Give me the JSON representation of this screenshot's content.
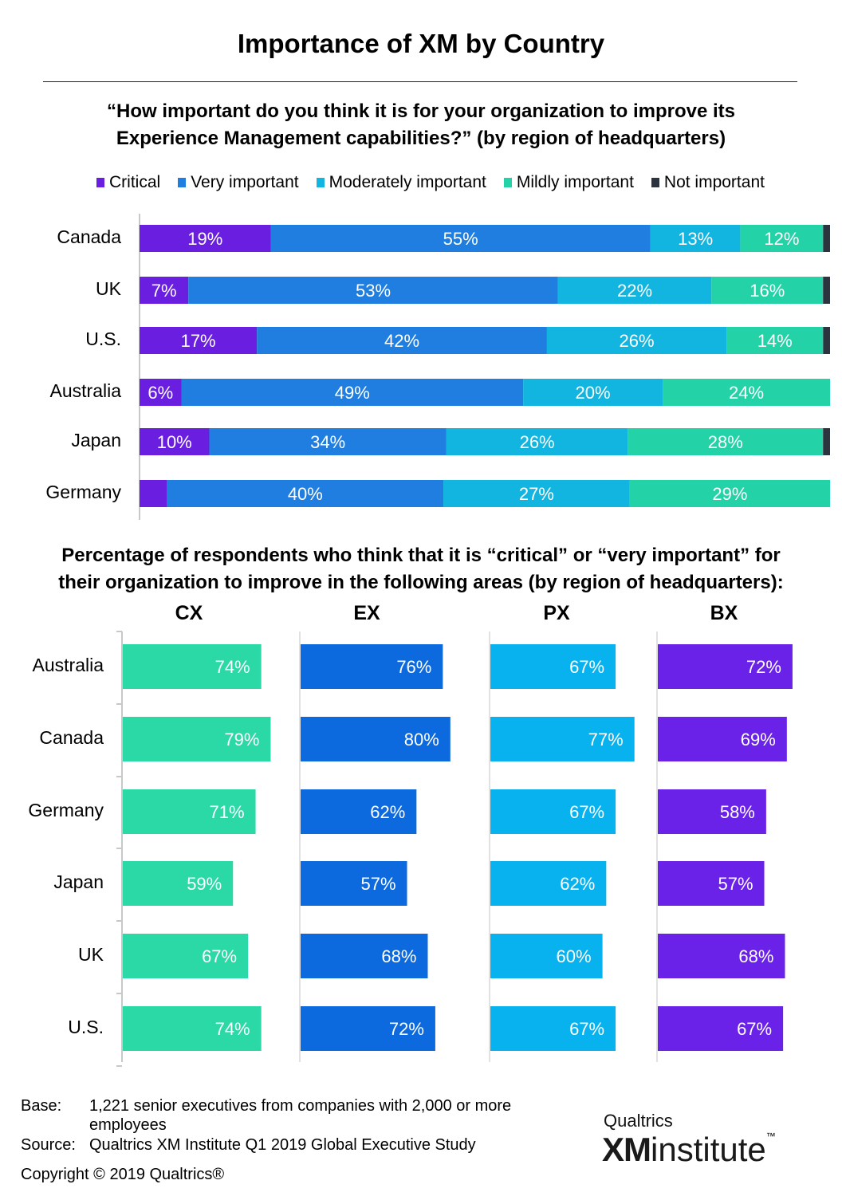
{
  "title": "Importance of XM by Country",
  "question1": {
    "line1": "“How important do you think it is for your organization to improve its",
    "line2": "Experience Management capabilities?”  (by region of headquarters)"
  },
  "question2": {
    "line1": "Percentage of respondents who think that it is “critical” or “very important” for",
    "line2": "their organization to improve in the following areas (by region of headquarters):"
  },
  "colors": {
    "critical": "#6a1fe0",
    "very_important": "#1f7ee0",
    "moderately_important": "#12b5e0",
    "mildly_important": "#24d2a8",
    "not_important": "#2c3440",
    "cx": "#2ad9a6",
    "ex": "#0c69de",
    "px": "#08b2ee",
    "bx": "#6a22e8"
  },
  "chart_data": [
    {
      "type": "bar",
      "orientation": "horizontal",
      "stacked": true,
      "legend_position": "top",
      "categories": [
        "Canada",
        "UK",
        "U.S.",
        "Australia",
        "Japan",
        "Germany"
      ],
      "series": [
        {
          "name": "Critical",
          "values": [
            19,
            7,
            17,
            6,
            10,
            4
          ],
          "labels": [
            "19%",
            "7%",
            "17%",
            "6%",
            "10%",
            ""
          ]
        },
        {
          "name": "Very important",
          "values": [
            55,
            53,
            42,
            49,
            34,
            40
          ],
          "labels": [
            "55%",
            "53%",
            "42%",
            "49%",
            "34%",
            "40%"
          ]
        },
        {
          "name": "Moderately important",
          "values": [
            13,
            22,
            26,
            20,
            26,
            27
          ],
          "labels": [
            "13%",
            "22%",
            "26%",
            "20%",
            "26%",
            "27%"
          ]
        },
        {
          "name": "Mildly important",
          "values": [
            12,
            16,
            14,
            24,
            28,
            29
          ],
          "labels": [
            "12%",
            "16%",
            "14%",
            "24%",
            "28%",
            "29%"
          ]
        },
        {
          "name": "Not important",
          "values": [
            1,
            1,
            1,
            0,
            1,
            0
          ],
          "labels": [
            "",
            "",
            "",
            "",
            "",
            ""
          ]
        }
      ],
      "xlim": [
        0,
        100
      ]
    },
    {
      "type": "bar",
      "orientation": "horizontal",
      "panels": [
        "CX",
        "EX",
        "PX",
        "BX"
      ],
      "categories": [
        "Australia",
        "Canada",
        "Germany",
        "Japan",
        "UK",
        "U.S."
      ],
      "series": [
        {
          "name": "CX",
          "values": [
            74,
            79,
            71,
            59,
            67,
            74
          ]
        },
        {
          "name": "EX",
          "values": [
            76,
            80,
            62,
            57,
            68,
            72
          ]
        },
        {
          "name": "PX",
          "values": [
            67,
            77,
            67,
            62,
            60,
            67
          ]
        },
        {
          "name": "BX",
          "values": [
            72,
            69,
            58,
            57,
            68,
            67
          ]
        }
      ],
      "xlim": [
        0,
        100
      ]
    }
  ],
  "footer": {
    "base_label": "Base:",
    "base_text_line1": "1,221 senior executives from companies with 2,000 or more",
    "base_text_line2": "employees",
    "source_label": "Source:",
    "source_text": "Qualtrics XM Institute Q1 2019 Global Executive Study",
    "copyright": "Copyright © 2019 Qualtrics®"
  },
  "brand": {
    "top": "Qualtrics",
    "xm": "XM",
    "institute": "institute",
    "tm": "™"
  }
}
